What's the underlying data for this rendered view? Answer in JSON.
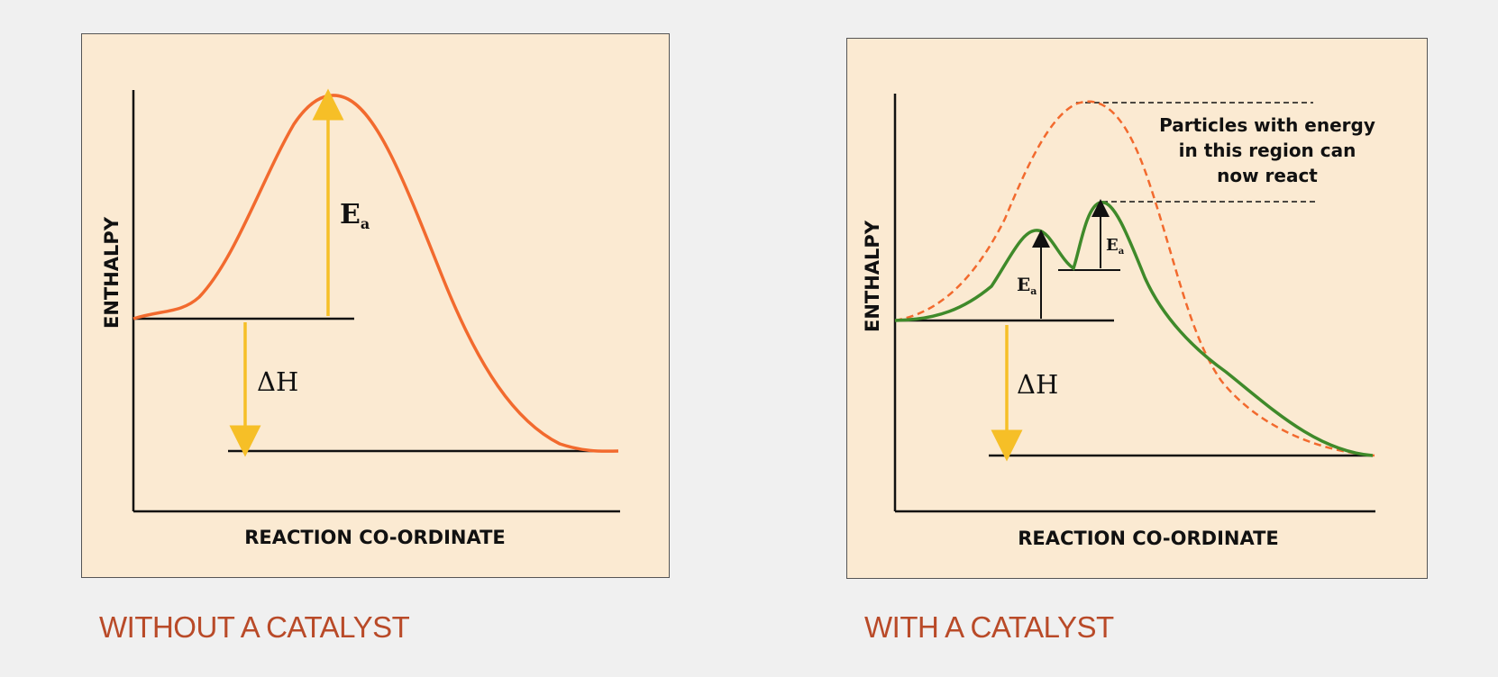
{
  "left_panel": {
    "y_axis_label": "ENTHALPY",
    "x_axis_label": "REACTION CO-ORDINATE",
    "ea_label": "E",
    "ea_subscript": "a",
    "dh_label": "ΔH",
    "caption": "WITHOUT A CATALYST",
    "colors": {
      "curve": "#f26a2e",
      "arrow": "#f6bf27",
      "axis": "#111111"
    }
  },
  "right_panel": {
    "y_axis_label": "ENTHALPY",
    "x_axis_label": "REACTION CO-ORDINATE",
    "note_line1": "Particles with energy",
    "note_line2": "in this region can",
    "note_line3": "now react",
    "ea1_label": "E",
    "ea1_subscript": "a",
    "ea2_label": "E",
    "ea2_subscript": "a",
    "dh_label": "ΔH",
    "caption": "WITH A CATALYST",
    "colors": {
      "catalysed_curve": "#3f8a2a",
      "uncatalysed_curve": "#f26a2e",
      "arrow": "#f6bf27",
      "axis": "#111111"
    }
  }
}
